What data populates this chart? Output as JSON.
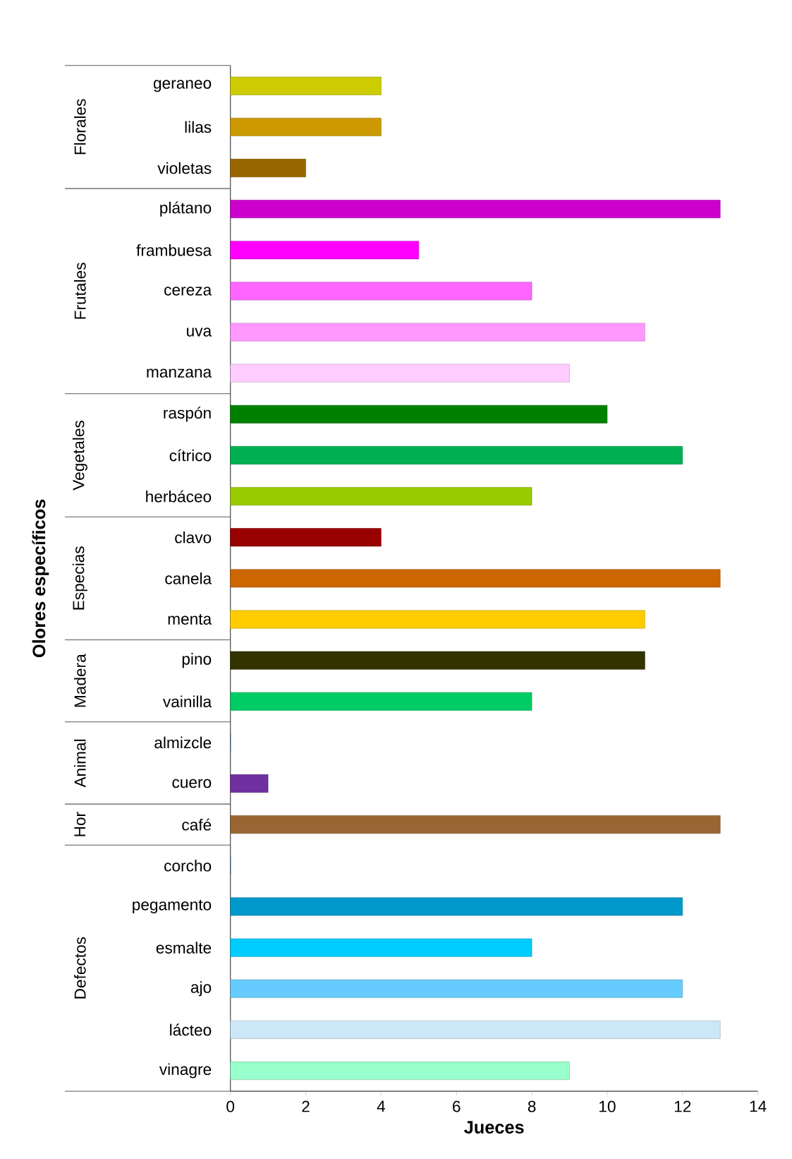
{
  "chart_data": {
    "type": "bar",
    "orientation": "horizontal",
    "xlabel": "Jueces",
    "ylabel": "Olores específicos",
    "categories": [
      "geraneo",
      "lilas",
      "violetas",
      "plátano",
      "frambuesa",
      "cereza",
      "uva",
      "manzana",
      "raspón",
      "cítrico",
      "herbáceo",
      "clavo",
      "canela",
      "menta",
      "pino",
      "vainilla",
      "almizcle",
      "cuero",
      "café",
      "corcho",
      "pegamento",
      "esmalte",
      "ajo",
      "lácteo",
      "vinagre"
    ],
    "values": [
      4,
      4,
      2,
      13,
      5,
      8,
      11,
      9,
      10,
      12,
      8,
      4,
      13,
      11,
      11,
      8,
      0,
      1,
      13,
      0,
      12,
      8,
      12,
      13,
      9
    ],
    "colors": [
      "#cccc00",
      "#cc9900",
      "#996600",
      "#cc00cc",
      "#ff00ff",
      "#ff66ff",
      "#ff99ff",
      "#ffccff",
      "#008000",
      "#00b050",
      "#99cc00",
      "#990000",
      "#cc6600",
      "#ffcc00",
      "#333300",
      "#00cc66",
      "#336699",
      "#7030a0",
      "#996633",
      "#336699",
      "#0099cc",
      "#00ccff",
      "#66ccff",
      "#cce8f8",
      "#99ffcc"
    ],
    "xlim": [
      0,
      14
    ],
    "xticks": [
      0,
      2,
      4,
      6,
      8,
      10,
      12,
      14
    ],
    "annotations": [
      "Florales",
      "Frutales",
      "Vegetales",
      "Especias",
      "Madera",
      "Animal",
      "Hor",
      "Defectos"
    ]
  }
}
